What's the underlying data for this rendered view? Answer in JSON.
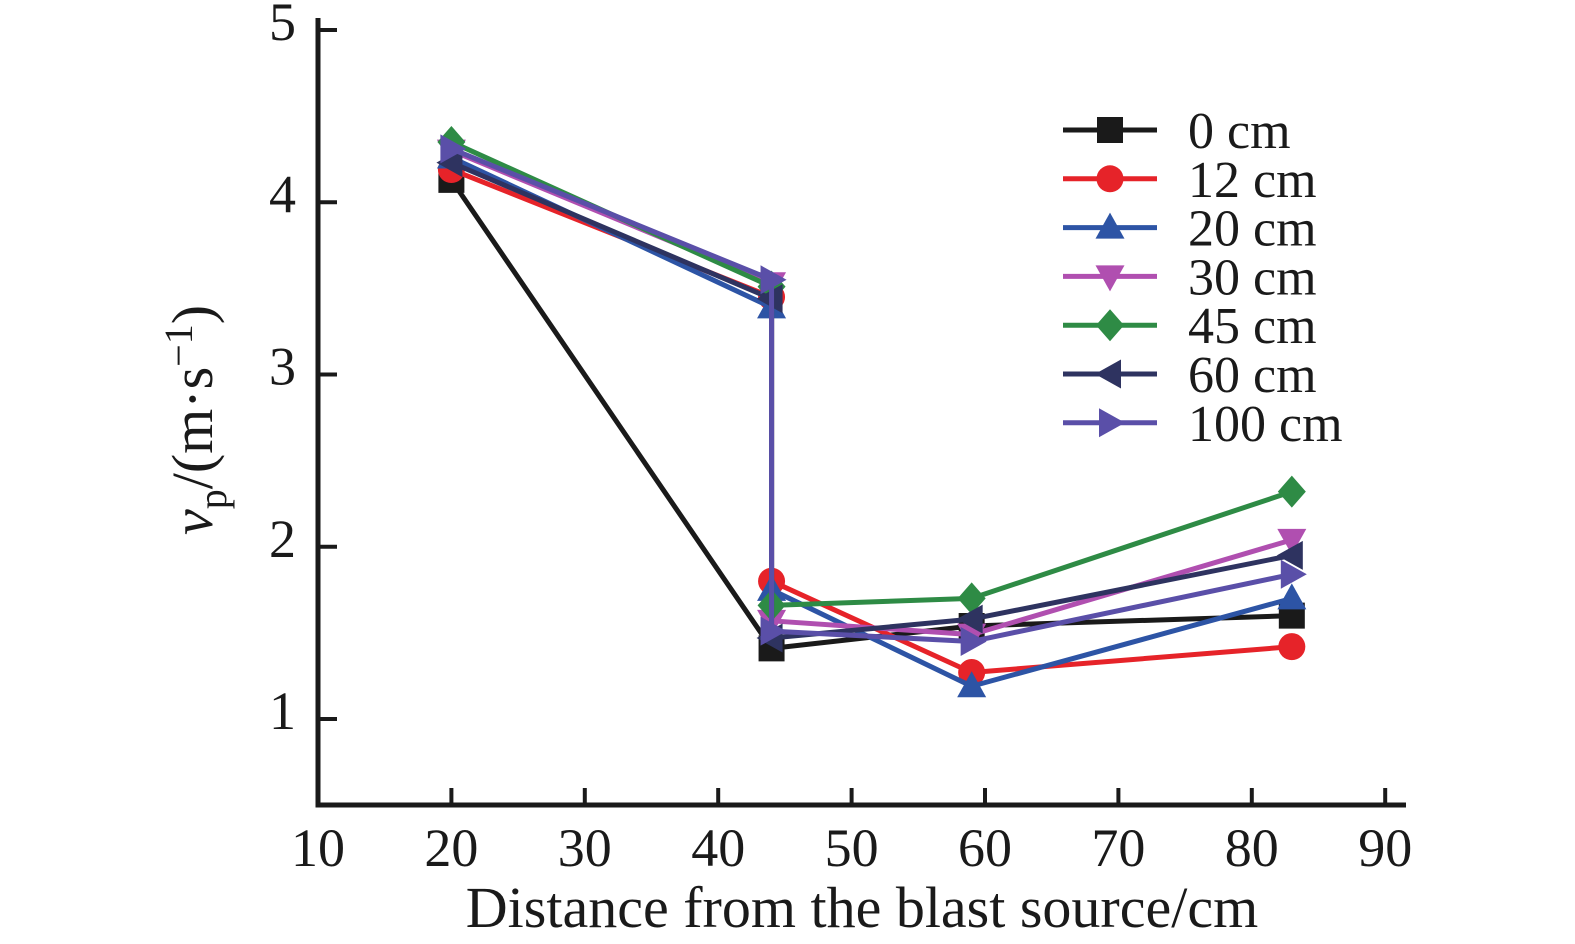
{
  "chart_data": {
    "type": "line",
    "title": "",
    "xlabel": "Distance from the blast source/cm",
    "ylabel": "vp/(m·s⁻¹)",
    "ylabel_parts": {
      "symbol": "v",
      "subscript": "p",
      "unit_prefix": "/(m·s",
      "superscript": "−1",
      "unit_suffix": ")"
    },
    "xlim": [
      10,
      90
    ],
    "ylim": [
      0.45,
      5
    ],
    "xticks": [
      10,
      20,
      30,
      40,
      50,
      60,
      70,
      80,
      90
    ],
    "yticks": [
      1,
      2,
      3,
      4,
      5
    ],
    "grid": false,
    "legend_position": "upper right",
    "axis_color": "#1a1a1a",
    "series": [
      {
        "name": "0 cm",
        "color": "#1a1a1a",
        "marker": "square",
        "points": [
          [
            20,
            4.13
          ],
          [
            44,
            1.41
          ],
          [
            59,
            1.54
          ],
          [
            83,
            1.6
          ]
        ]
      },
      {
        "name": "12 cm",
        "color": "#e62329",
        "marker": "circle",
        "points": [
          [
            20,
            4.19
          ],
          [
            44,
            3.45
          ],
          [
            44,
            1.8
          ],
          [
            59,
            1.27
          ],
          [
            83,
            1.42
          ]
        ]
      },
      {
        "name": "20 cm",
        "color": "#2d54a5",
        "marker": "triangle-up",
        "points": [
          [
            20,
            4.26
          ],
          [
            44,
            3.39
          ],
          [
            44,
            1.75
          ],
          [
            59,
            1.19
          ],
          [
            83,
            1.7
          ]
        ]
      },
      {
        "name": "30 cm",
        "color": "#b04fb0",
        "marker": "triangle-down",
        "points": [
          [
            20,
            4.3
          ],
          [
            44,
            3.53
          ],
          [
            44,
            1.57
          ],
          [
            59,
            1.49
          ],
          [
            83,
            2.04
          ]
        ]
      },
      {
        "name": "45 cm",
        "color": "#2e8b45",
        "marker": "diamond",
        "points": [
          [
            20,
            4.35
          ],
          [
            44,
            3.51
          ],
          [
            44,
            1.66
          ],
          [
            59,
            1.7
          ],
          [
            83,
            2.32
          ]
        ]
      },
      {
        "name": "60 cm",
        "color": "#2e3360",
        "marker": "triangle-left",
        "points": [
          [
            20,
            4.23
          ],
          [
            44,
            3.44
          ],
          [
            44,
            1.47
          ],
          [
            59,
            1.58
          ],
          [
            83,
            1.95
          ]
        ]
      },
      {
        "name": "100 cm",
        "color": "#5a4fa8",
        "marker": "triangle-right",
        "points": [
          [
            20,
            4.31
          ],
          [
            44,
            3.55
          ],
          [
            44,
            1.51
          ],
          [
            59,
            1.45
          ],
          [
            83,
            1.84
          ]
        ]
      }
    ]
  }
}
